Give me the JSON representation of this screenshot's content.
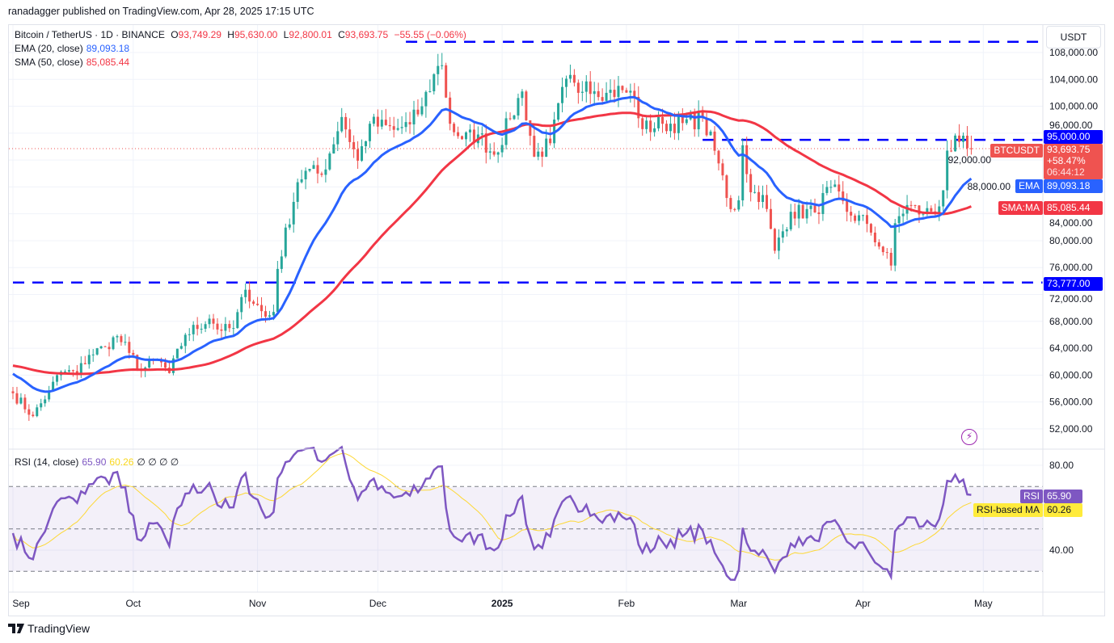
{
  "header": {
    "published": "ranadagger published on TradingView.com, Apr 28, 2025 17:15 UTC"
  },
  "legend": {
    "symbol": "Bitcoin / TetherUS · 1D · BINANCE",
    "open_label": "O",
    "open": "93,749.29",
    "high_label": "H",
    "high": "95,630.00",
    "low_label": "L",
    "low": "92,800.01",
    "close_label": "C",
    "close": "93,693.75",
    "change": "−55.55 (−0.06%)",
    "ema_label": "EMA (20, close)",
    "ema_value": "89,093.18",
    "sma_label": "SMA (50, close)",
    "sma_value": "85,085.44",
    "rsi_label": "RSI (14, close)",
    "rsi_value": "65.90",
    "rsi_ma_value": "60.26",
    "rsi_extra": "∅ ∅ ∅ ∅"
  },
  "currency_button": "USDT",
  "price_tags": {
    "level_95k": "95,000.00",
    "symbol": "BTCUSDT",
    "last": "93,693.75",
    "last_change": "+58.47%",
    "countdown": "06:44:12",
    "ema_tag": "EMA",
    "ema": "89,093.18",
    "sma_tag": "SMA:MA",
    "sma": "85,085.44",
    "level_73k": "73,777.00",
    "rsi_tag": "RSI",
    "rsi": "65.90",
    "rsi_ma_tag": "RSI-based MA",
    "rsi_ma": "60.26"
  },
  "branding": "TradingView",
  "colors": {
    "up": "#26a69a",
    "down": "#ef5350",
    "ema": "#2962ff",
    "sma": "#f23645",
    "rsi": "#7e57c2",
    "rsi_ma": "#fdd835",
    "level": "#0000ff"
  },
  "chart_data": {
    "type": "candlestick",
    "price_ticks": [
      "108,000.00",
      "104,000.00",
      "100,000.00",
      "96,000.00",
      "92,000.00",
      "88,000.00",
      "84,000.00",
      "80,000.00",
      "76,000.00",
      "72,000.00",
      "68,000.00",
      "64,000.00",
      "60,000.00",
      "56,000.00",
      "52,000.00"
    ],
    "price_range": [
      51000,
      110000
    ],
    "rsi_ticks": [
      "80.00",
      "40.00"
    ],
    "rsi_bands": [
      70,
      50,
      30
    ],
    "time_ticks": [
      {
        "label": "Sep",
        "date": "2024-09-01"
      },
      {
        "label": "Oct",
        "date": "2024-10-01"
      },
      {
        "label": "Nov",
        "date": "2024-11-01"
      },
      {
        "label": "Dec",
        "date": "2024-12-01"
      },
      {
        "label": "2025",
        "date": "2025-01-01"
      },
      {
        "label": "Feb",
        "date": "2025-02-01"
      },
      {
        "label": "Mar",
        "date": "2025-03-01"
      },
      {
        "label": "Apr",
        "date": "2025-04-01"
      },
      {
        "label": "May",
        "date": "2025-05-01"
      }
    ],
    "horizontal_levels": [
      {
        "value": 109600,
        "from": "2024-12-08"
      },
      {
        "value": 95000,
        "from": "2025-02-20",
        "label": "95,000.00"
      },
      {
        "value": 73777,
        "from": "2024-09-01",
        "label": "73,777.00"
      }
    ],
    "last_candle": {
      "open": 93749.29,
      "high": 95630.0,
      "low": 92800.01,
      "close": 93693.75
    },
    "close_keypoints": [
      [
        "2024-09-01",
        57300
      ],
      [
        "2024-09-06",
        53900
      ],
      [
        "2024-09-10",
        57600
      ],
      [
        "2024-09-13",
        60500
      ],
      [
        "2024-09-17",
        60300
      ],
      [
        "2024-09-20",
        63000
      ],
      [
        "2024-09-24",
        64200
      ],
      [
        "2024-09-27",
        65800
      ],
      [
        "2024-09-30",
        63300
      ],
      [
        "2024-10-03",
        60700
      ],
      [
        "2024-10-07",
        62300
      ],
      [
        "2024-10-10",
        60300
      ],
      [
        "2024-10-14",
        66000
      ],
      [
        "2024-10-20",
        68400
      ],
      [
        "2024-10-23",
        66600
      ],
      [
        "2024-10-26",
        67000
      ],
      [
        "2024-10-29",
        72700
      ],
      [
        "2024-11-03",
        68700
      ],
      [
        "2024-11-05",
        69400
      ],
      [
        "2024-11-06",
        75800
      ],
      [
        "2024-11-11",
        88700
      ],
      [
        "2024-11-13",
        90400
      ],
      [
        "2024-11-17",
        89800
      ],
      [
        "2024-11-22",
        98400
      ],
      [
        "2024-11-26",
        91900
      ],
      [
        "2024-11-29",
        97400
      ],
      [
        "2024-12-05",
        96500
      ],
      [
        "2024-12-09",
        97300
      ],
      [
        "2024-12-12",
        100000
      ],
      [
        "2024-12-16",
        106000
      ],
      [
        "2024-12-17",
        106100
      ],
      [
        "2024-12-19",
        97400
      ],
      [
        "2024-12-22",
        95100
      ],
      [
        "2024-12-26",
        95800
      ],
      [
        "2024-12-30",
        92800
      ],
      [
        "2025-01-03",
        98100
      ],
      [
        "2025-01-06",
        102200
      ],
      [
        "2025-01-09",
        92500
      ],
      [
        "2025-01-13",
        94500
      ],
      [
        "2025-01-17",
        104100
      ],
      [
        "2025-01-20",
        102000
      ],
      [
        "2025-01-22",
        103700
      ],
      [
        "2025-01-27",
        102000
      ],
      [
        "2025-01-31",
        102400
      ],
      [
        "2025-02-03",
        101400
      ],
      [
        "2025-02-05",
        96600
      ],
      [
        "2025-02-10",
        97400
      ],
      [
        "2025-02-15",
        97500
      ],
      [
        "2025-02-20",
        98300
      ],
      [
        "2025-02-24",
        91500
      ],
      [
        "2025-02-27",
        84700
      ],
      [
        "2025-03-01",
        86000
      ],
      [
        "2025-03-02",
        94200
      ],
      [
        "2025-03-04",
        87200
      ],
      [
        "2025-03-07",
        86800
      ],
      [
        "2025-03-10",
        78500
      ],
      [
        "2025-03-14",
        84300
      ],
      [
        "2025-03-20",
        84200
      ],
      [
        "2025-03-24",
        88000
      ],
      [
        "2025-03-28",
        84300
      ],
      [
        "2025-04-02",
        82500
      ],
      [
        "2025-04-06",
        78300
      ],
      [
        "2025-04-08",
        76300
      ],
      [
        "2025-04-09",
        82600
      ],
      [
        "2025-04-12",
        85300
      ],
      [
        "2025-04-16",
        84000
      ],
      [
        "2025-04-20",
        85100
      ],
      [
        "2025-04-21",
        87500
      ],
      [
        "2025-04-22",
        93400
      ],
      [
        "2025-04-25",
        94700
      ],
      [
        "2025-04-27",
        93750
      ],
      [
        "2025-04-28",
        93693.75
      ]
    ]
  }
}
